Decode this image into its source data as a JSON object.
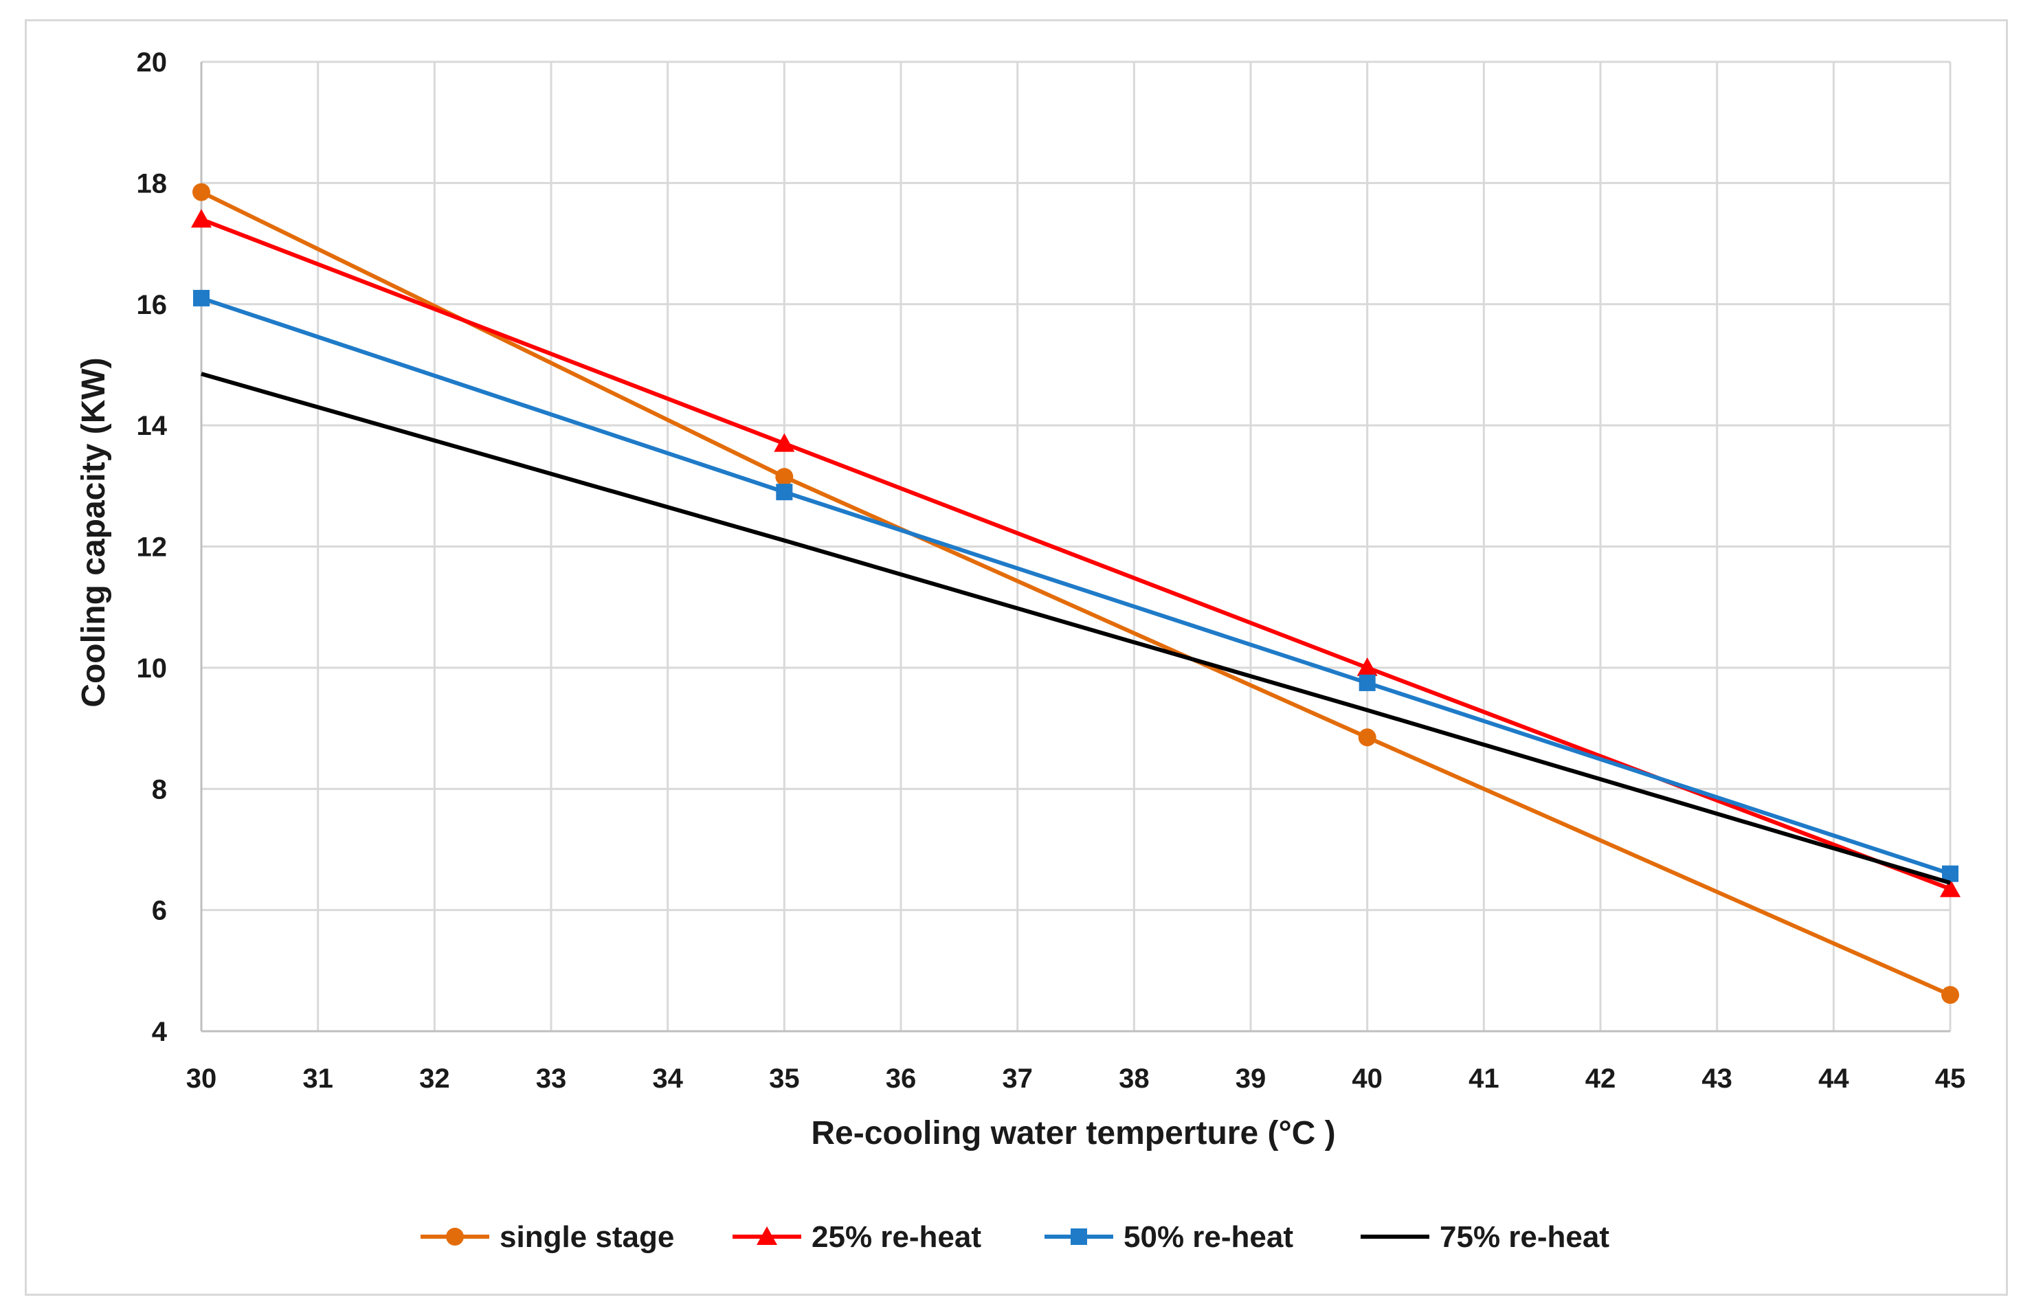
{
  "chart_data": {
    "type": "line",
    "title": "",
    "xlabel": "Re-cooling water temperture (°C )",
    "ylabel": "Cooling capacity (KW)",
    "xlim": [
      30,
      45
    ],
    "ylim": [
      4,
      20
    ],
    "xticks": [
      "30",
      "31",
      "32",
      "33",
      "34",
      "35",
      "36",
      "37",
      "38",
      "39",
      "40",
      "41",
      "42",
      "43",
      "44",
      "45"
    ],
    "yticks": [
      "4",
      "6",
      "8",
      "10",
      "12",
      "14",
      "16",
      "18",
      "20"
    ],
    "grid": true,
    "legend_position": "bottom",
    "x": [
      30,
      35,
      40,
      45
    ],
    "series": [
      {
        "name": "single stage",
        "values": [
          17.85,
          13.15,
          8.85,
          4.6
        ],
        "color": "#e36c0a",
        "marker": "circle"
      },
      {
        "name": "25% re-heat",
        "values": [
          17.4,
          13.7,
          10.0,
          6.35
        ],
        "color": "#ff0000",
        "marker": "triangle"
      },
      {
        "name": "50% re-heat",
        "values": [
          16.1,
          12.9,
          9.75,
          6.6
        ],
        "color": "#1f7bc8",
        "marker": "square"
      },
      {
        "name": "75% re-heat",
        "values": [
          14.85,
          12.1,
          9.3,
          6.45
        ],
        "color": "#000000",
        "marker": "none"
      }
    ]
  }
}
